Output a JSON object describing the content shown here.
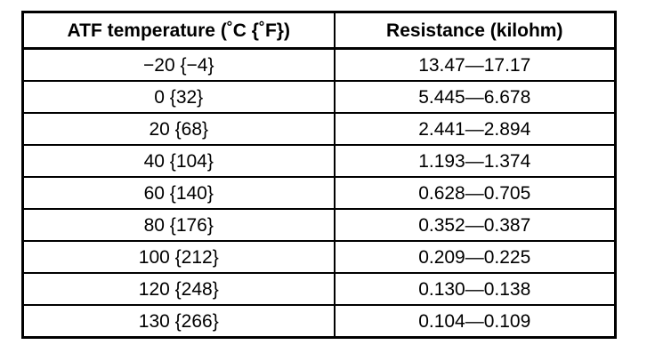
{
  "table": {
    "headers": {
      "temperature": "ATF temperature (˚C {˚F})",
      "resistance": "Resistance (kilohm)"
    },
    "rows": [
      {
        "temperature": "−20 {−4}",
        "resistance": "13.47—17.17"
      },
      {
        "temperature": "0 {32}",
        "resistance": "5.445—6.678"
      },
      {
        "temperature": "20 {68}",
        "resistance": "2.441—2.894"
      },
      {
        "temperature": "40 {104}",
        "resistance": "1.193—1.374"
      },
      {
        "temperature": "60 {140}",
        "resistance": "0.628—0.705"
      },
      {
        "temperature": "80 {176}",
        "resistance": "0.352—0.387"
      },
      {
        "temperature": "100 {212}",
        "resistance": "0.209—0.225"
      },
      {
        "temperature": "120 {248}",
        "resistance": "0.130—0.138"
      },
      {
        "temperature": "130 {266}",
        "resistance": "0.104—0.109"
      }
    ]
  }
}
